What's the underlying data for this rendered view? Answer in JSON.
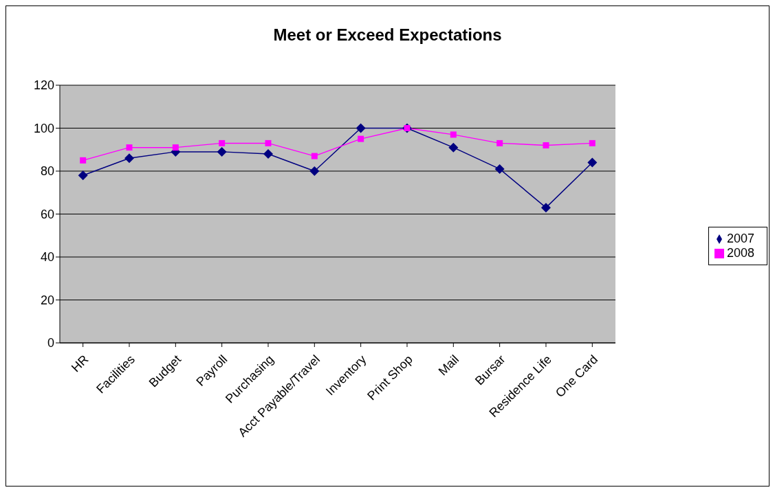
{
  "chart_data": {
    "type": "line",
    "title": "Meet or Exceed Expectations",
    "categories": [
      "HR",
      "Facilities",
      "Budget",
      "Payroll",
      "Purchasing",
      "Acct Payable/Travel",
      "Inventory",
      "Print Shop",
      "Mail",
      "Bursar",
      "Residence Life",
      "One Card"
    ],
    "series": [
      {
        "name": "2007",
        "color": "#000080",
        "marker": "diamond",
        "values": [
          78,
          86,
          89,
          89,
          88,
          80,
          100,
          100,
          91,
          81,
          63,
          84
        ]
      },
      {
        "name": "2008",
        "color": "#ff00ff",
        "marker": "square",
        "values": [
          85,
          91,
          91,
          93,
          93,
          87,
          95,
          100,
          97,
          93,
          92,
          93
        ]
      }
    ],
    "ylim": [
      0,
      120
    ],
    "yticks": [
      0,
      20,
      40,
      60,
      80,
      100,
      120
    ],
    "grid": "y",
    "legend": "right",
    "line_style": "solid"
  }
}
